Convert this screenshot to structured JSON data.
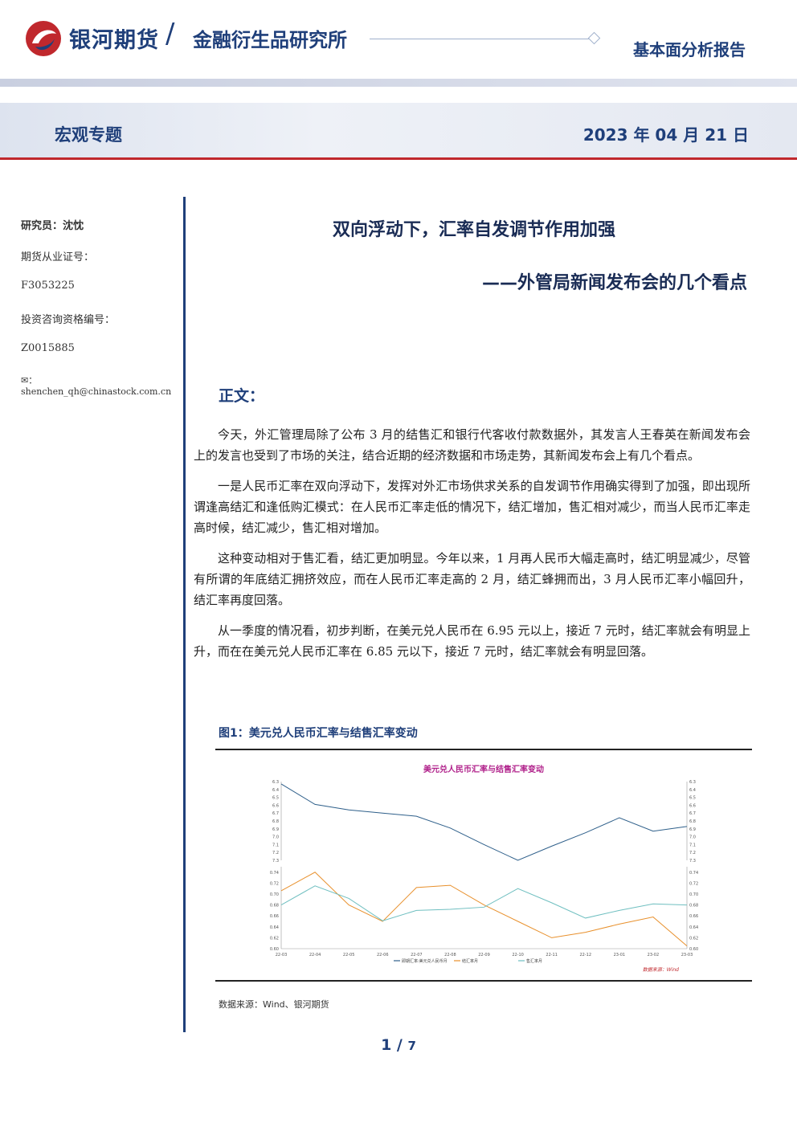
{
  "header": {
    "brand": "银河期货",
    "institute": "金融衍生品研究所",
    "report_type": "基本面分析报告"
  },
  "band": {
    "section": "宏观专题",
    "date": "2023 年 04 月 21 日"
  },
  "sidebar": {
    "researcher": "研究员：沈忱",
    "license_label": "期货从业证号：",
    "license": "F3053225",
    "consult_label": "投资咨询资格编号：",
    "consult": "Z0015885",
    "email": "：shenchen_qh@chinastock.com.cn"
  },
  "title": {
    "main": "双向浮动下，汇率自发调节作用加强",
    "sub": "——外管局新闻发布会的几个看点"
  },
  "body_heading": "正文：",
  "paragraphs": [
    "今天，外汇管理局除了公布 3 月的结售汇和银行代客收付款数据外，其发言人王春英在新闻发布会上的发言也受到了市场的关注，结合近期的经济数据和市场走势，其新闻发布会上有几个看点。",
    "一是人民币汇率在双向浮动下，发挥对外汇市场供求关系的自发调节作用确实得到了加强，即出现所谓逢高结汇和逢低购汇模式：在人民币汇率走低的情况下，结汇增加，售汇相对减少，而当人民币汇率走高时候，结汇减少，售汇相对增加。",
    "这种变动相对于售汇看，结汇更加明显。今年以来，1 月再人民币大幅走高时，结汇明显减少，尽管有所谓的年底结汇拥挤效应，而在人民币汇率走高的 2 月，结汇蜂拥而出，3 月人民币汇率小幅回升，结汇率再度回落。",
    "从一季度的情况看，初步判断，在美元兑人民币在 6.95 元以上，接近 7 元时，结汇率就会有明显上升，而在在美元兑人民币汇率在 6.85 元以下，接近 7 元时，结汇率就会有明显回落。"
  ],
  "figure": {
    "title": "图1：美元兑人民币汇率与结售汇率变动",
    "source": "数据来源：Wind、银河期货"
  },
  "chart_data": {
    "type": "line",
    "title": "美元兑人民币汇率与结售汇率变动",
    "source_note": "数据来源：Wind",
    "categories": [
      "22-03",
      "22-04",
      "22-05",
      "22-06",
      "22-07",
      "22-08",
      "22-09",
      "22-10",
      "22-11",
      "22-12",
      "23-01",
      "23-02",
      "23-03"
    ],
    "top_panel": {
      "ylim": [
        6.3,
        7.3
      ],
      "ticks": [
        "6.3",
        "6.4",
        "6.5",
        "6.6",
        "6.7",
        "6.8",
        "6.9",
        "7.0",
        "7.1",
        "7.2",
        "7.3"
      ],
      "series": [
        {
          "name": "即期汇率:美元兑人民币月",
          "color": "#2e5f8a",
          "values": [
            6.33,
            6.59,
            6.66,
            6.7,
            6.74,
            6.89,
            7.1,
            7.3,
            7.12,
            6.95,
            6.76,
            6.93,
            6.87
          ]
        }
      ]
    },
    "bottom_panel": {
      "ylim": [
        0.6,
        0.75
      ],
      "ticks": [
        "0.60",
        "0.62",
        "0.64",
        "0.66",
        "0.68",
        "0.70",
        "0.72",
        "0.74"
      ],
      "series": [
        {
          "name": "结汇率月",
          "color": "#e8902c",
          "values": [
            0.706,
            0.74,
            0.68,
            0.65,
            0.712,
            0.716,
            0.68,
            0.65,
            0.62,
            0.63,
            0.645,
            0.658,
            0.605
          ]
        },
        {
          "name": "售汇率月",
          "color": "#6fbfc0",
          "values": [
            0.68,
            0.715,
            0.692,
            0.651,
            0.67,
            0.672,
            0.676,
            0.71,
            0.684,
            0.656,
            0.67,
            0.682,
            0.68
          ]
        }
      ]
    }
  },
  "pager": {
    "current": "1",
    "total": "7"
  }
}
